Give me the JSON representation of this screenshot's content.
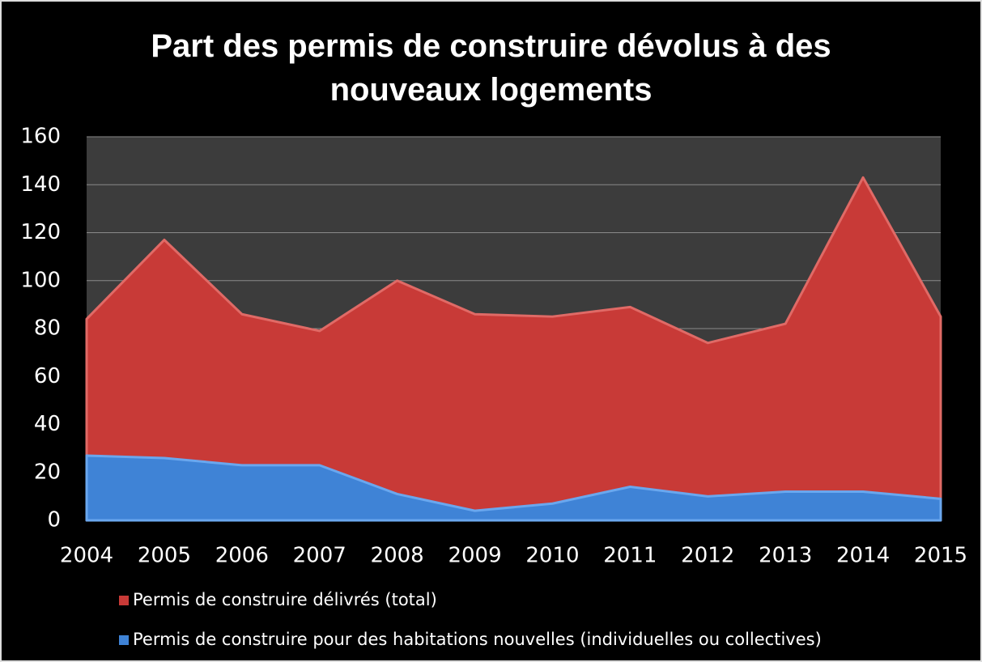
{
  "chart_data": {
    "type": "area",
    "title": "Part des permis de construire dévolus à des nouveaux logements",
    "categories": [
      "2004",
      "2005",
      "2006",
      "2007",
      "2008",
      "2009",
      "2010",
      "2011",
      "2012",
      "2013",
      "2014",
      "2015"
    ],
    "series": [
      {
        "name": "Permis de construire délivrés (total)",
        "color": "#c83a37",
        "values": [
          84,
          117,
          86,
          79,
          100,
          86,
          85,
          89,
          74,
          82,
          143,
          85
        ]
      },
      {
        "name": "Permis de construire pour des habitations nouvelles (individuelles ou collectives)",
        "color": "#3f83d6",
        "values": [
          27,
          26,
          23,
          23,
          11,
          4,
          7,
          14,
          10,
          12,
          12,
          9
        ]
      }
    ],
    "ylim": [
      0,
      160
    ],
    "yticks": [
      0,
      20,
      40,
      60,
      80,
      100,
      120,
      140,
      160
    ],
    "grid": true,
    "legend": "bottom"
  }
}
